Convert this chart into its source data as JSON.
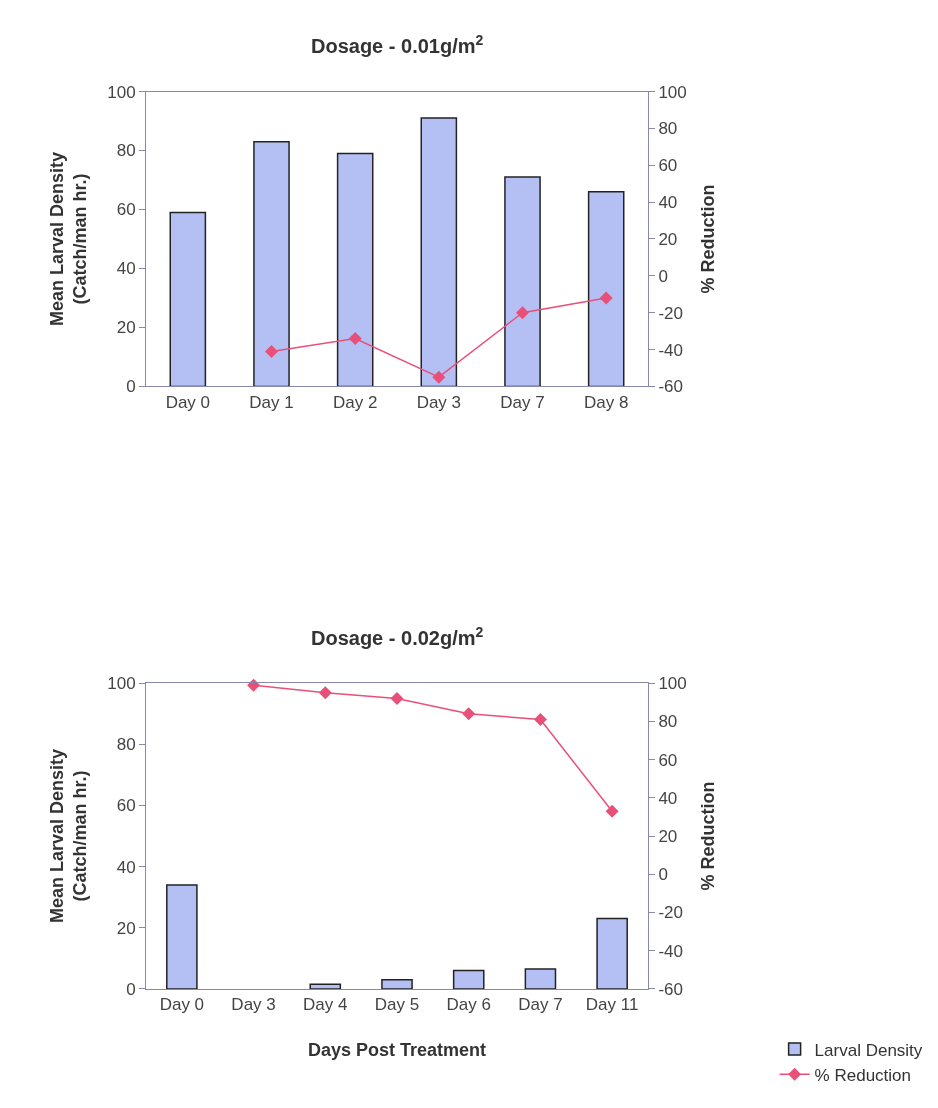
{
  "chart_data": [
    {
      "type": "bar",
      "title": "Dosage - 0.01g/m$^{2}$",
      "ylabel": "Mean Larval Density\n(Catch/man hr.)",
      "y2label": "% Reduction",
      "categories": [
        "Day 0",
        "Day 1",
        "Day 2",
        "Day 3",
        "Day 7",
        "Day 8"
      ],
      "series": [
        {
          "color": "#b4c0f4",
          "values": [
            59,
            83,
            79,
            91,
            71,
            66
          ]
        },
        {
          "type": "line",
          "axis": "y2",
          "color": "#e8507a",
          "marker": "diamond",
          "values": [
            null,
            -41,
            -34,
            -55,
            -20,
            -12
          ]
        }
      ],
      "ylim": [
        0,
        100
      ],
      "yticks": [
        0,
        20,
        40,
        60,
        80,
        100
      ],
      "y2lim": [
        -60,
        100
      ],
      "y2ticks": [
        -60,
        -40,
        -20,
        0,
        20,
        40,
        60,
        80,
        100
      ],
      "legend": false
    },
    {
      "type": "bar",
      "title": "Dosage - 0.02g/m$^{2}$",
      "ylabel": "Mean Larval Density\n(Catch/man hr.)",
      "y2label": "% Reduction",
      "xlabel": "Days Post Treatment",
      "categories": [
        "Day 0",
        "Day 3",
        "Day 4",
        "Day 5",
        "Day 6",
        "Day 7",
        "Day 11"
      ],
      "series": [
        {
          "name": "Larval Density",
          "color": "#b4c0f4",
          "values": [
            34,
            null,
            1.5,
            3,
            6,
            6.5,
            23
          ]
        },
        {
          "type": "line",
          "axis": "y2",
          "name": "% Reduction",
          "color": "#e8507a",
          "marker": "diamond",
          "values": [
            null,
            99,
            95,
            92,
            84,
            81,
            33
          ]
        }
      ],
      "ylim": [
        0,
        100
      ],
      "yticks": [
        0,
        20,
        40,
        60,
        80,
        100
      ],
      "y2lim": [
        -60,
        100
      ],
      "y2ticks": [
        -60,
        -40,
        -20,
        0,
        20,
        40,
        60,
        80,
        100
      ],
      "legend": "bottom right"
    }
  ]
}
